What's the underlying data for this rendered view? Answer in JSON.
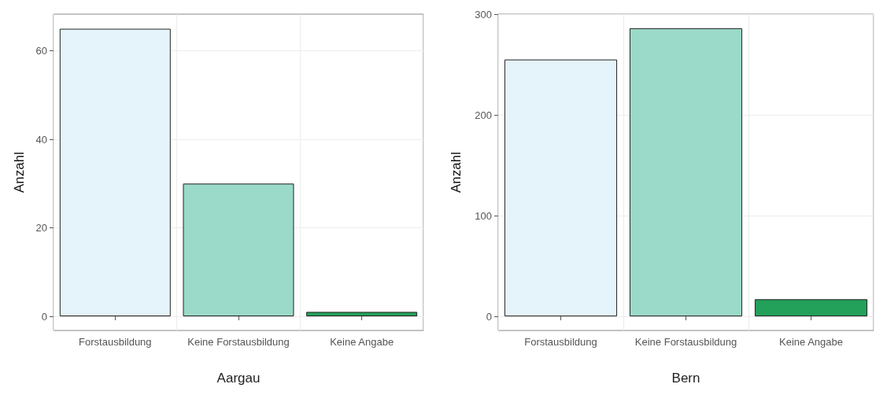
{
  "chart_data": [
    {
      "type": "bar",
      "xlabel": "Aargau",
      "ylabel": "Anzahl",
      "categories": [
        "Forstausbildung",
        "Keine Forstausbildung",
        "Keine Angabe"
      ],
      "values": [
        65,
        30,
        1
      ],
      "colors": [
        "#e4f4fa",
        "#9bd9c8",
        "#23a05a"
      ],
      "ylim": [
        -3.2,
        68.3
      ],
      "yticks": [
        0,
        20,
        40,
        60
      ],
      "grid": true
    },
    {
      "type": "bar",
      "xlabel": "Bern",
      "ylabel": "Anzahl",
      "categories": [
        "Forstausbildung",
        "Keine Forstausbildung",
        "Keine Angabe"
      ],
      "values": [
        255,
        286,
        17
      ],
      "colors": [
        "#e4f4fa",
        "#9bd9c8",
        "#23a05a"
      ],
      "ylim": [
        -14,
        300
      ],
      "yticks": [
        0,
        100,
        200,
        300
      ],
      "grid": true
    }
  ]
}
